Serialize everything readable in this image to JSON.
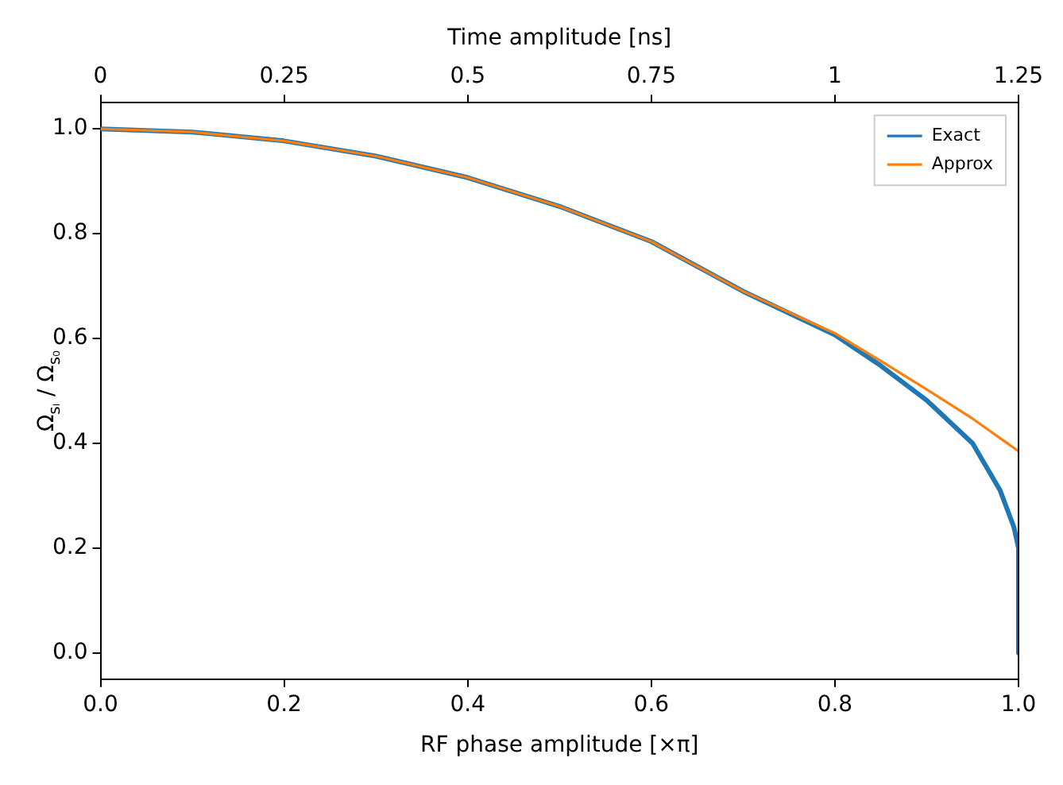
{
  "chart_data": {
    "type": "line",
    "xlabel": "RF phase amplitude [×π]",
    "ylabel": "Ω$_{sₗ}$ / Ω$_{s₀}$",
    "x2label": "Time amplitude [ns]",
    "xlim": [
      0,
      1
    ],
    "xticks": [
      {
        "value": 0,
        "label": "0.0"
      },
      0.2,
      0.4,
      0.6,
      0.8,
      {
        "value": 1,
        "label": "1.0"
      }
    ],
    "x2lim": [
      0,
      1.25
    ],
    "x2ticks": [
      0,
      0.25,
      0.5,
      0.75,
      1,
      1.25
    ],
    "ylim": [
      -0.05,
      1.05
    ],
    "yticks": [
      {
        "value": 0,
        "label": "0.0"
      },
      0.2,
      0.4,
      0.6,
      0.8,
      {
        "value": 1,
        "label": "1.0"
      }
    ],
    "grid": false,
    "legend": "top right",
    "marker": "none",
    "line_style": "solid",
    "series": [
      {
        "name": "Exact",
        "color": "#1f77b4",
        "x": [
          0,
          0.1,
          0.2,
          0.3,
          0.4,
          0.5,
          0.6,
          0.7,
          0.8,
          0.85,
          0.9,
          0.95,
          0.98,
          0.995,
          1,
          1
        ],
        "values": [
          1,
          0.994,
          0.977,
          0.948,
          0.907,
          0.852,
          0.785,
          0.69,
          0.607,
          0.548,
          0.482,
          0.4,
          0.31,
          0.24,
          0.2,
          0
        ]
      },
      {
        "name": "Approx",
        "color": "#ff7f0e",
        "x": [
          0,
          0.1,
          0.2,
          0.3,
          0.4,
          0.5,
          0.6,
          0.7,
          0.8,
          0.85,
          0.9,
          0.95,
          1
        ],
        "values": [
          1,
          0.994,
          0.977,
          0.948,
          0.907,
          0.852,
          0.785,
          0.69,
          0.61,
          0.557,
          0.503,
          0.447,
          0.385
        ]
      }
    ]
  }
}
